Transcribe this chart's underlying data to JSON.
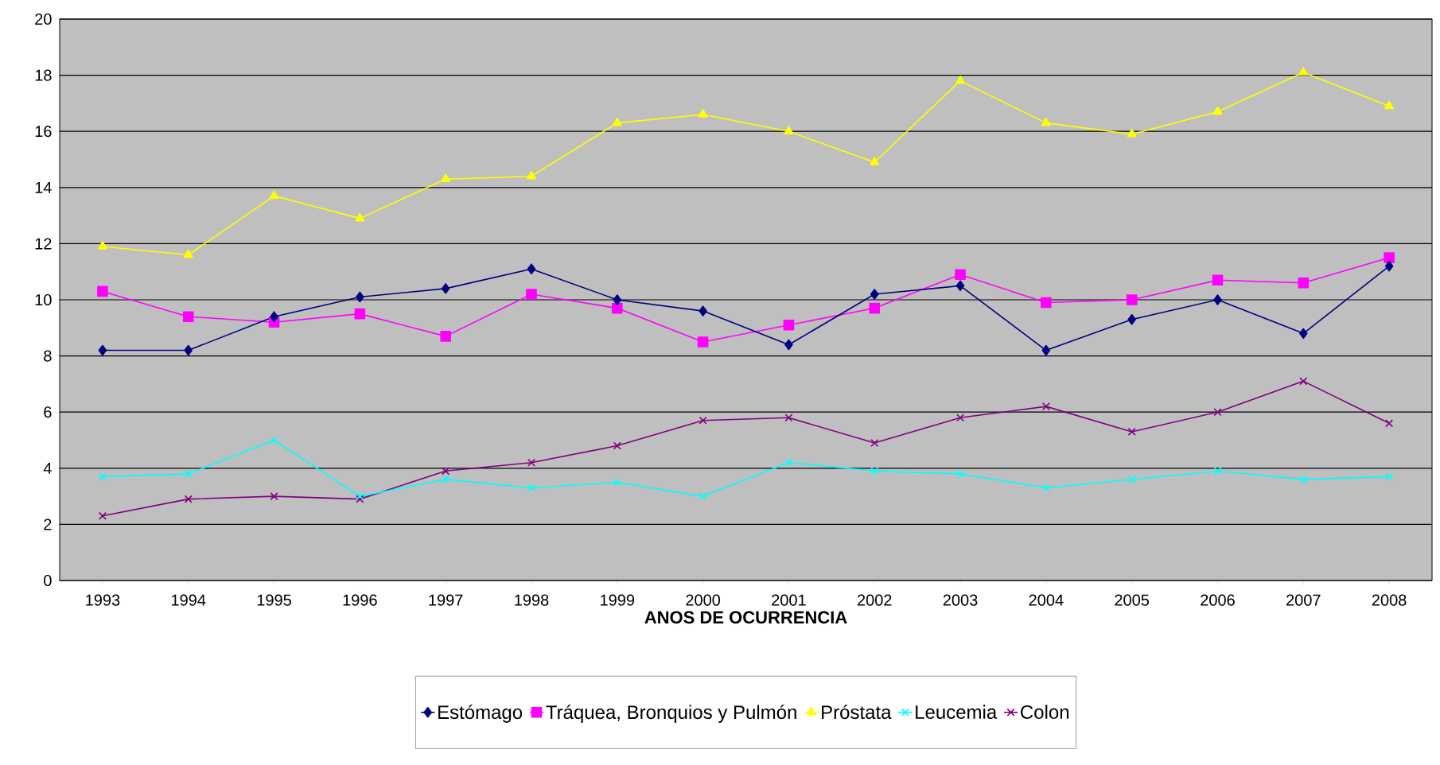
{
  "chart_data": {
    "type": "line",
    "xlabel": "ANOS DE OCURRENCIA",
    "categories": [
      "1993",
      "1994",
      "1995",
      "1996",
      "1997",
      "1998",
      "1999",
      "2000",
      "2001",
      "2002",
      "2003",
      "2004",
      "2005",
      "2006",
      "2007",
      "2008"
    ],
    "series": [
      {
        "name": "Estómago",
        "color": "#000080",
        "marker": "diamond",
        "values": [
          8.2,
          8.2,
          9.4,
          10.1,
          10.4,
          11.1,
          10.0,
          9.6,
          8.4,
          10.2,
          10.5,
          8.2,
          9.3,
          10.0,
          8.8,
          11.2
        ]
      },
      {
        "name": "Tráquea, Bronquios y Pulmón",
        "color": "#ff00ff",
        "marker": "square",
        "values": [
          10.3,
          9.4,
          9.2,
          9.5,
          8.7,
          10.2,
          9.7,
          8.5,
          9.1,
          9.7,
          10.9,
          9.9,
          10.0,
          10.7,
          10.6,
          11.5
        ]
      },
      {
        "name": "Próstata",
        "color": "#ffff00",
        "marker": "triangle",
        "values": [
          11.9,
          11.6,
          13.7,
          12.9,
          14.3,
          14.4,
          16.3,
          16.6,
          16.0,
          14.9,
          17.8,
          16.3,
          15.9,
          16.7,
          18.1,
          16.9
        ]
      },
      {
        "name": "Leucemia",
        "color": "#00ffff",
        "marker": "cross",
        "values": [
          3.7,
          3.8,
          5.0,
          3.0,
          3.6,
          3.3,
          3.5,
          3.0,
          4.2,
          3.9,
          3.8,
          3.3,
          3.6,
          3.9,
          3.6,
          3.7
        ]
      },
      {
        "name": "Colon",
        "color": "#800080",
        "marker": "cross",
        "values": [
          2.3,
          2.9,
          3.0,
          2.9,
          3.9,
          4.2,
          4.8,
          5.7,
          5.8,
          4.9,
          5.8,
          6.2,
          5.3,
          6.0,
          7.1,
          5.6
        ]
      }
    ],
    "ylim": [
      0,
      20
    ],
    "yticks": [
      0,
      2,
      4,
      6,
      8,
      10,
      12,
      14,
      16,
      18,
      20
    ],
    "grid": "y",
    "legend": "bottom",
    "line_style": "solid"
  }
}
